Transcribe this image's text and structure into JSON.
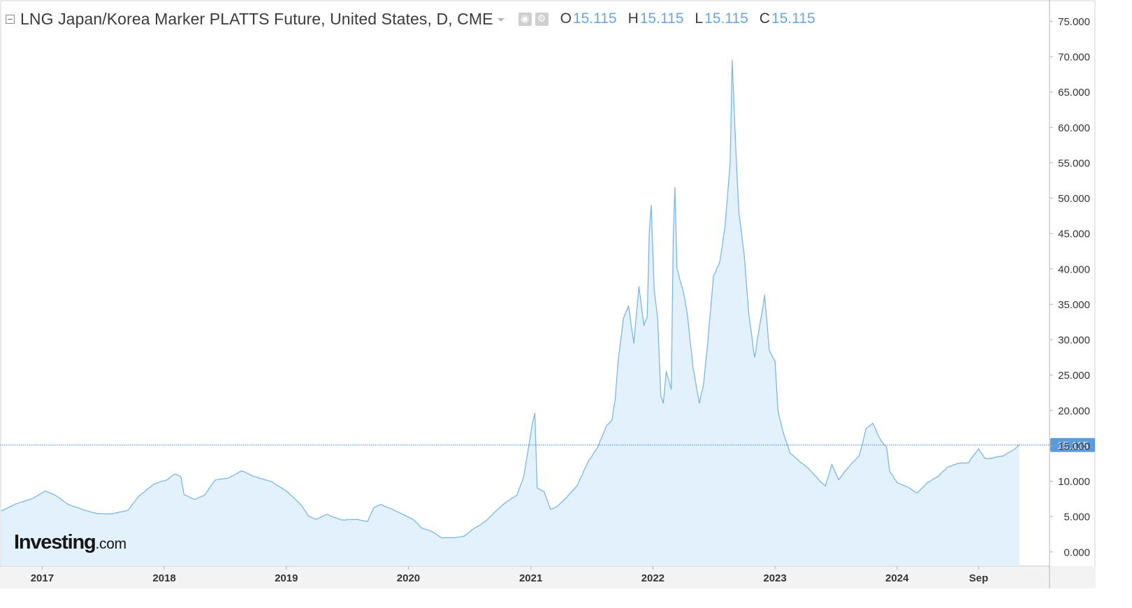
{
  "header": {
    "title": "LNG Japan/Korea Marker PLATTS Future, United States, D, CME",
    "ohlc": [
      {
        "key": "O",
        "value": "15.115"
      },
      {
        "key": "H",
        "value": "15.115"
      },
      {
        "key": "L",
        "value": "15.115"
      },
      {
        "key": "C",
        "value": "15.115"
      }
    ]
  },
  "logo": {
    "brand": "Investing",
    "suffix": ".com"
  },
  "colors": {
    "line": "#7db6e6",
    "fill": "#e2f1fb",
    "price_label_bg": "#5a9be0",
    "axis_text": "#333333"
  },
  "chart_data": {
    "type": "area",
    "title": "",
    "xlabel": "",
    "ylabel": "",
    "ylim": [
      -2,
      78
    ],
    "grid": false,
    "current_price": 15.115,
    "current_price_label": "15.115",
    "y_ticks": [
      {
        "value": 75,
        "label": "75.000"
      },
      {
        "value": 70,
        "label": "70.000"
      },
      {
        "value": 65,
        "label": "65.000"
      },
      {
        "value": 60,
        "label": "60.000"
      },
      {
        "value": 55,
        "label": "55.000"
      },
      {
        "value": 50,
        "label": "50.000"
      },
      {
        "value": 45,
        "label": "45.000"
      },
      {
        "value": 40,
        "label": "40.000"
      },
      {
        "value": 35,
        "label": "35.000"
      },
      {
        "value": 30,
        "label": "30.000"
      },
      {
        "value": 25,
        "label": "25.000"
      },
      {
        "value": 20,
        "label": "20.000"
      },
      {
        "value": 15,
        "label": "15.000"
      },
      {
        "value": 10,
        "label": "10.000"
      },
      {
        "value": 5,
        "label": "5.000"
      },
      {
        "value": 0,
        "label": "0.000"
      }
    ],
    "x_range": [
      "2016-09-01",
      "2025-04-01"
    ],
    "x_ticks": [
      {
        "date": "2017-01-01",
        "label": "2017"
      },
      {
        "date": "2018-01-01",
        "label": "2018"
      },
      {
        "date": "2019-01-01",
        "label": "2019"
      },
      {
        "date": "2020-01-01",
        "label": "2020"
      },
      {
        "date": "2021-01-01",
        "label": "2021"
      },
      {
        "date": "2022-01-01",
        "label": "2022"
      },
      {
        "date": "2023-01-01",
        "label": "2023"
      },
      {
        "date": "2024-01-01",
        "label": "2024"
      },
      {
        "date": "2024-09-01",
        "label": "Sep"
      }
    ],
    "series": [
      {
        "points": [
          [
            "2016-09-01",
            5.8
          ],
          [
            "2016-10-15",
            6.8
          ],
          [
            "2016-12-01",
            7.5
          ],
          [
            "2017-01-10",
            8.6
          ],
          [
            "2017-02-10",
            8.0
          ],
          [
            "2017-03-20",
            6.7
          ],
          [
            "2017-05-01",
            6.0
          ],
          [
            "2017-06-15",
            5.4
          ],
          [
            "2017-08-01",
            5.4
          ],
          [
            "2017-09-15",
            5.9
          ],
          [
            "2017-10-15",
            7.8
          ],
          [
            "2017-12-01",
            9.6
          ],
          [
            "2018-01-10",
            10.2
          ],
          [
            "2018-02-01",
            11.0
          ],
          [
            "2018-02-20",
            10.6
          ],
          [
            "2018-03-01",
            8.1
          ],
          [
            "2018-04-01",
            7.4
          ],
          [
            "2018-05-01",
            8.0
          ],
          [
            "2018-06-01",
            10.1
          ],
          [
            "2018-07-15",
            10.5
          ],
          [
            "2018-08-20",
            11.5
          ],
          [
            "2018-10-01",
            10.6
          ],
          [
            "2018-11-15",
            10.0
          ],
          [
            "2019-01-01",
            8.6
          ],
          [
            "2019-01-20",
            7.8
          ],
          [
            "2019-02-15",
            6.6
          ],
          [
            "2019-03-10",
            5.0
          ],
          [
            "2019-04-01",
            4.6
          ],
          [
            "2019-05-01",
            5.3
          ],
          [
            "2019-06-15",
            4.5
          ],
          [
            "2019-08-01",
            4.6
          ],
          [
            "2019-09-01",
            4.3
          ],
          [
            "2019-09-20",
            6.3
          ],
          [
            "2019-10-10",
            6.7
          ],
          [
            "2019-11-15",
            6.0
          ],
          [
            "2019-12-20",
            5.2
          ],
          [
            "2020-01-15",
            4.6
          ],
          [
            "2020-02-10",
            3.4
          ],
          [
            "2020-03-10",
            2.9
          ],
          [
            "2020-04-10",
            2.0
          ],
          [
            "2020-05-15",
            2.0
          ],
          [
            "2020-06-15",
            2.2
          ],
          [
            "2020-07-15",
            3.3
          ],
          [
            "2020-08-15",
            4.2
          ],
          [
            "2020-09-15",
            5.6
          ],
          [
            "2020-10-15",
            6.9
          ],
          [
            "2020-11-20",
            8.0
          ],
          [
            "2020-12-10",
            10.5
          ],
          [
            "2020-12-28",
            15.5
          ],
          [
            "2021-01-05",
            18.0
          ],
          [
            "2021-01-13",
            19.6
          ],
          [
            "2021-01-20",
            9.0
          ],
          [
            "2021-02-10",
            8.5
          ],
          [
            "2021-03-01",
            6.0
          ],
          [
            "2021-03-20",
            6.4
          ],
          [
            "2021-04-20",
            7.8
          ],
          [
            "2021-05-20",
            9.4
          ],
          [
            "2021-06-20",
            12.6
          ],
          [
            "2021-07-20",
            14.8
          ],
          [
            "2021-08-15",
            17.8
          ],
          [
            "2021-09-01",
            18.7
          ],
          [
            "2021-09-10",
            21.5
          ],
          [
            "2021-09-20",
            27.5
          ],
          [
            "2021-10-05",
            33.0
          ],
          [
            "2021-10-20",
            34.8
          ],
          [
            "2021-11-05",
            29.5
          ],
          [
            "2021-11-20",
            37.5
          ],
          [
            "2021-12-05",
            32.0
          ],
          [
            "2021-12-15",
            33.2
          ],
          [
            "2021-12-21",
            45.0
          ],
          [
            "2021-12-27",
            49.0
          ],
          [
            "2022-01-05",
            37.0
          ],
          [
            "2022-01-15",
            33.0
          ],
          [
            "2022-01-25",
            22.0
          ],
          [
            "2022-02-01",
            21.0
          ],
          [
            "2022-02-10",
            25.5
          ],
          [
            "2022-02-25",
            23.0
          ],
          [
            "2022-03-03",
            45.0
          ],
          [
            "2022-03-08",
            51.5
          ],
          [
            "2022-03-14",
            40.0
          ],
          [
            "2022-04-01",
            37.0
          ],
          [
            "2022-04-15",
            33.2
          ],
          [
            "2022-05-01",
            26.0
          ],
          [
            "2022-05-20",
            21.0
          ],
          [
            "2022-06-01",
            23.5
          ],
          [
            "2022-06-15",
            30.0
          ],
          [
            "2022-07-01",
            39.0
          ],
          [
            "2022-07-20",
            41.0
          ],
          [
            "2022-08-05",
            46.0
          ],
          [
            "2022-08-20",
            55.0
          ],
          [
            "2022-08-26",
            69.5
          ],
          [
            "2022-09-05",
            58.0
          ],
          [
            "2022-09-15",
            48.0
          ],
          [
            "2022-10-01",
            42.0
          ],
          [
            "2022-10-15",
            33.5
          ],
          [
            "2022-11-01",
            27.5
          ],
          [
            "2022-11-20",
            33.0
          ],
          [
            "2022-12-01",
            36.3
          ],
          [
            "2022-12-15",
            28.5
          ],
          [
            "2023-01-01",
            27.0
          ],
          [
            "2023-01-10",
            20.0
          ],
          [
            "2023-01-25",
            17.0
          ],
          [
            "2023-02-15",
            14.0
          ],
          [
            "2023-03-15",
            12.8
          ],
          [
            "2023-04-15",
            11.6
          ],
          [
            "2023-05-15",
            10.0
          ],
          [
            "2023-06-01",
            9.3
          ],
          [
            "2023-06-20",
            12.4
          ],
          [
            "2023-07-10",
            10.2
          ],
          [
            "2023-08-01",
            11.5
          ],
          [
            "2023-08-20",
            12.6
          ],
          [
            "2023-09-10",
            13.6
          ],
          [
            "2023-10-01",
            17.5
          ],
          [
            "2023-10-20",
            18.2
          ],
          [
            "2023-11-15",
            15.6
          ],
          [
            "2023-12-01",
            14.8
          ],
          [
            "2023-12-10",
            11.4
          ],
          [
            "2024-01-01",
            9.8
          ],
          [
            "2024-02-01",
            9.2
          ],
          [
            "2024-03-01",
            8.3
          ],
          [
            "2024-04-01",
            9.8
          ],
          [
            "2024-05-01",
            10.6
          ],
          [
            "2024-06-01",
            12.0
          ],
          [
            "2024-07-01",
            12.5
          ],
          [
            "2024-08-01",
            12.6
          ],
          [
            "2024-09-01",
            14.6
          ],
          [
            "2024-09-20",
            13.2
          ],
          [
            "2024-10-15",
            13.3
          ],
          [
            "2024-11-15",
            13.6
          ],
          [
            "2024-12-10",
            14.3
          ],
          [
            "2025-01-01",
            15.115
          ]
        ]
      }
    ]
  }
}
